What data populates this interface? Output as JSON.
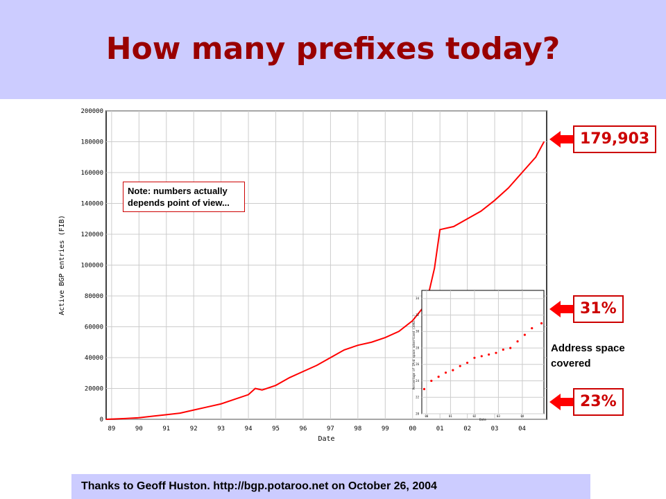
{
  "title": "How many prefixes today?",
  "note": "Note: numbers actually depends point of view...",
  "callouts": {
    "current": "179,903",
    "high": "31%",
    "low": "23%"
  },
  "address_label": "Address space covered",
  "footer": "Thanks to Geoff Huston. http://bgp.potaroo.net on October 26, 2004",
  "colors": {
    "header_bg": "#ccccff",
    "title": "#990000",
    "data": "#ff0000"
  },
  "chart_data": [
    {
      "type": "line",
      "xlabel": "Date",
      "ylabel": "Active BGP entries (FIB)",
      "x_ticks": [
        "89",
        "90",
        "91",
        "92",
        "93",
        "94",
        "95",
        "96",
        "97",
        "98",
        "99",
        "00",
        "01",
        "02",
        "03",
        "04"
      ],
      "y_ticks": [
        "0",
        "20000",
        "40000",
        "60000",
        "80000",
        "100000",
        "120000",
        "140000",
        "160000",
        "180000",
        "200000"
      ],
      "ylim": [
        0,
        200000
      ],
      "xlim": [
        1988.8,
        2004.9
      ],
      "grid": true,
      "series": [
        {
          "x": [
            1988.8,
            1989.5,
            1990,
            1990.5,
            1991,
            1991.5,
            1992,
            1992.5,
            1993,
            1993.5,
            1994,
            1994.25,
            1994.5,
            1995,
            1995.5,
            1996,
            1996.5,
            1997,
            1997.5,
            1998,
            1998.5,
            1999,
            1999.5,
            2000,
            2000.5,
            2000.8,
            2001,
            2001.5,
            2002,
            2002.5,
            2003,
            2003.5,
            2004,
            2004.5,
            2004.8
          ],
          "y": [
            0,
            500,
            1000,
            2000,
            3000,
            4000,
            6000,
            8000,
            10000,
            13000,
            16000,
            20000,
            19000,
            22000,
            27000,
            31000,
            35000,
            40000,
            45000,
            48000,
            50000,
            53000,
            57000,
            64000,
            75000,
            98000,
            123000,
            125000,
            130000,
            135000,
            142000,
            150000,
            160000,
            170000,
            179903
          ]
        }
      ]
    },
    {
      "type": "scatter",
      "xlabel": "Date",
      "ylabel": "Percentage of IPv4 space advertised (1993...)",
      "x_ticks": [
        "00",
        "01",
        "02",
        "03",
        "04"
      ],
      "y_ticks": [
        "20",
        "22",
        "24",
        "26",
        "28",
        "30",
        "32",
        "34"
      ],
      "ylim": [
        20,
        35
      ],
      "xlim": [
        1999.8,
        2004.9
      ],
      "series": [
        {
          "x": [
            1999.9,
            2000.2,
            2000.5,
            2000.8,
            2001.1,
            2001.4,
            2001.7,
            2002,
            2002.3,
            2002.6,
            2002.9,
            2003.2,
            2003.5,
            2003.8,
            2004.1,
            2004.4,
            2004.8
          ],
          "y": [
            23,
            24,
            24.5,
            25,
            25.3,
            25.8,
            26.2,
            26.8,
            27,
            27.2,
            27.4,
            27.8,
            28,
            28.8,
            29.6,
            30.4,
            31
          ]
        }
      ]
    }
  ]
}
